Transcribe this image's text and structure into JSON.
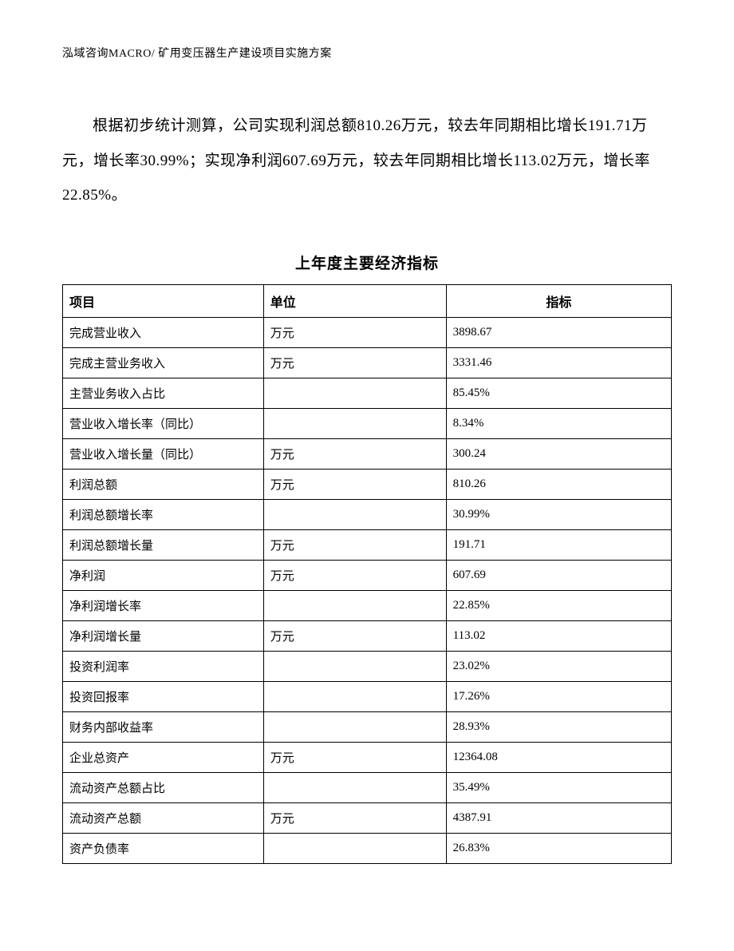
{
  "header": "泓域咨询MACRO/ 矿用变压器生产建设项目实施方案",
  "paragraph": "根据初步统计测算，公司实现利润总额810.26万元，较去年同期相比增长191.71万元，增长率30.99%；实现净利润607.69万元，较去年同期相比增长113.02万元，增长率22.85%。",
  "table": {
    "title": "上年度主要经济指标",
    "columns": [
      "项目",
      "单位",
      "指标"
    ],
    "rows": [
      [
        "完成营业收入",
        "万元",
        "3898.67"
      ],
      [
        "完成主营业务收入",
        "万元",
        "3331.46"
      ],
      [
        "主营业务收入占比",
        "",
        "85.45%"
      ],
      [
        "营业收入增长率（同比）",
        "",
        "8.34%"
      ],
      [
        "营业收入增长量（同比）",
        "万元",
        "300.24"
      ],
      [
        "利润总额",
        "万元",
        "810.26"
      ],
      [
        "利润总额增长率",
        "",
        "30.99%"
      ],
      [
        "利润总额增长量",
        "万元",
        "191.71"
      ],
      [
        "净利润",
        "万元",
        "607.69"
      ],
      [
        "净利润增长率",
        "",
        "22.85%"
      ],
      [
        "净利润增长量",
        "万元",
        "113.02"
      ],
      [
        "投资利润率",
        "",
        "23.02%"
      ],
      [
        "投资回报率",
        "",
        "17.26%"
      ],
      [
        "财务内部收益率",
        "",
        "28.93%"
      ],
      [
        "企业总资产",
        "万元",
        "12364.08"
      ],
      [
        "流动资产总额占比",
        "",
        "35.49%"
      ],
      [
        "流动资产总额",
        "万元",
        "4387.91"
      ],
      [
        "资产负债率",
        "",
        "26.83%"
      ]
    ]
  }
}
